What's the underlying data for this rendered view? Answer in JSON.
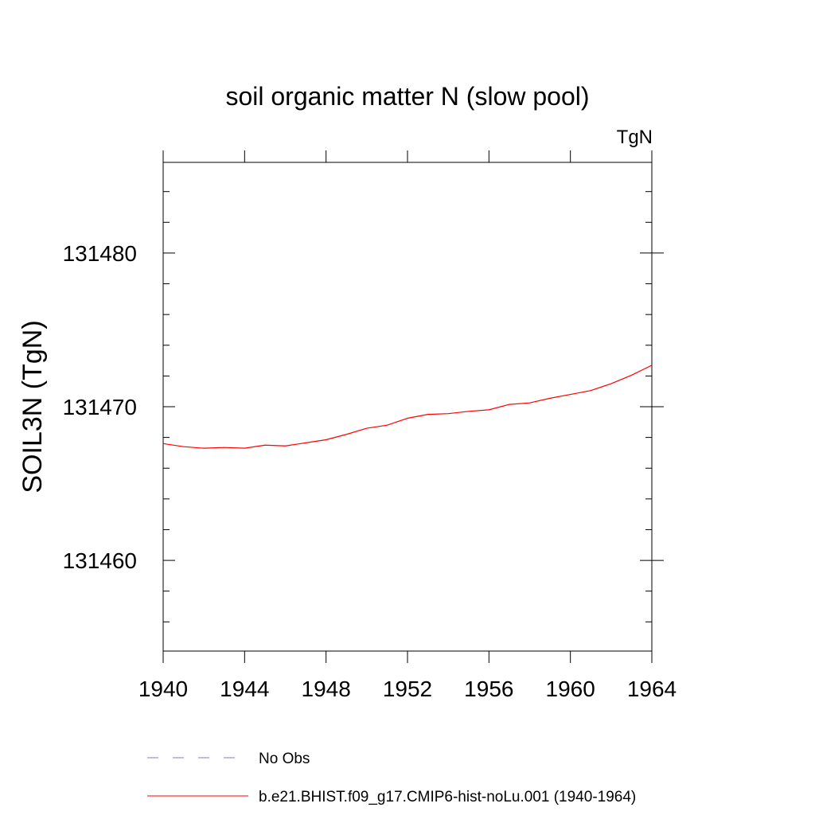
{
  "chart_data": {
    "type": "line",
    "title": "soil organic matter N (slow pool)",
    "units_label": "TgN",
    "ylabel": "SOIL3N  (TgN)",
    "xlabel": "",
    "xlim": [
      1940,
      1964
    ],
    "ylim": [
      131454.1,
      131485.9
    ],
    "x_ticks": [
      1940,
      1944,
      1948,
      1952,
      1956,
      1960,
      1964
    ],
    "y_ticks": [
      131460,
      131470,
      131480
    ],
    "grid": false,
    "legend_position": "bottom-left",
    "series": [
      {
        "name": "No Obs",
        "color": "#7b7bd0",
        "style": "dashed",
        "x": [],
        "y": []
      },
      {
        "name": "b.e21.BHIST.f09_g17.CMIP6-hist-noLu.001 (1940-1964)",
        "color": "#ff0000",
        "style": "solid",
        "x": [
          1940,
          1941,
          1942,
          1943,
          1944,
          1945,
          1946,
          1947,
          1948,
          1949,
          1950,
          1951,
          1952,
          1953,
          1954,
          1955,
          1956,
          1957,
          1958,
          1959,
          1960,
          1961,
          1962,
          1963,
          1964
        ],
        "y": [
          131467.6,
          131467.4,
          131467.3,
          131467.35,
          131467.3,
          131467.5,
          131467.45,
          131467.65,
          131467.85,
          131468.2,
          131468.6,
          131468.8,
          131469.25,
          131469.5,
          131469.55,
          131469.7,
          131469.8,
          131470.15,
          131470.25,
          131470.55,
          131470.8,
          131471.05,
          131471.5,
          131472.05,
          131472.7
        ]
      }
    ]
  }
}
